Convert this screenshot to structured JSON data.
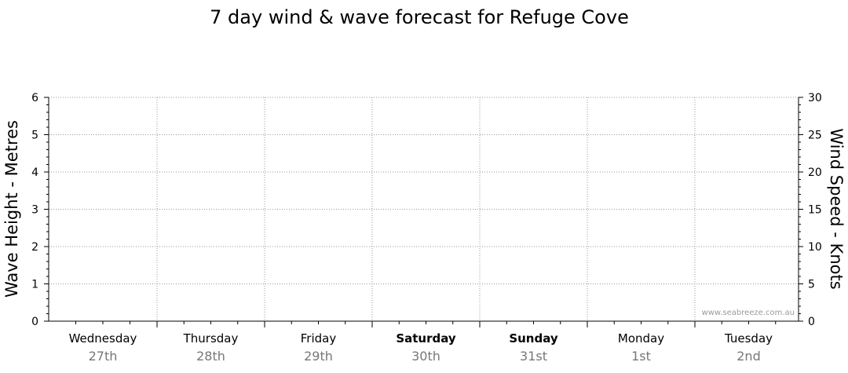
{
  "chart_data": {
    "type": "line",
    "title": "7 day wind & wave forecast for Refuge Cove",
    "ylabel_left": "Wave Height - Metres",
    "ylabel_right": "Wind Speed - Knots",
    "ylim_left": [
      0,
      6
    ],
    "ylim_right": [
      0,
      30
    ],
    "yticks_left": [
      "0",
      "1",
      "2",
      "3",
      "4",
      "5",
      "6"
    ],
    "yticks_right": [
      "0",
      "5",
      "10",
      "15",
      "20",
      "25",
      "30"
    ],
    "days": [
      {
        "day": "Wednesday",
        "date": "27th",
        "weekend": false
      },
      {
        "day": "Thursday",
        "date": "28th",
        "weekend": false
      },
      {
        "day": "Friday",
        "date": "29th",
        "weekend": false
      },
      {
        "day": "Saturday",
        "date": "30th",
        "weekend": true
      },
      {
        "day": "Sunday",
        "date": "31st",
        "weekend": true
      },
      {
        "day": "Monday",
        "date": "1st",
        "weekend": false
      },
      {
        "day": "Tuesday",
        "date": "2nd",
        "weekend": false
      }
    ],
    "series": [],
    "grid": true
  },
  "watermark": "www.seabreeze.com.au"
}
